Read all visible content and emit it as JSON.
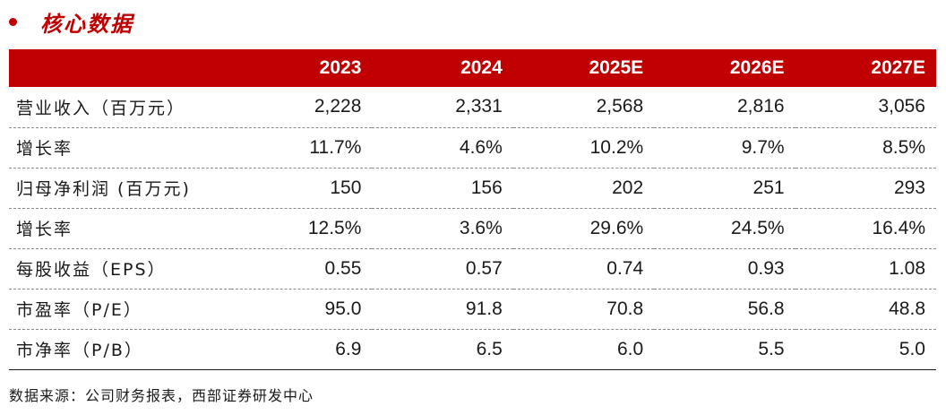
{
  "section": {
    "title": "核心数据",
    "bullet_color": "#c00000"
  },
  "table": {
    "header_color": "#c00000",
    "columns": [
      "",
      "2023",
      "2024",
      "2025E",
      "2026E",
      "2027E"
    ],
    "rows": [
      {
        "label": "营业收入（百万元）",
        "values": [
          "2,228",
          "2,331",
          "2,568",
          "2,816",
          "3,056"
        ]
      },
      {
        "label": "增长率",
        "values": [
          "11.7%",
          "4.6%",
          "10.2%",
          "9.7%",
          "8.5%"
        ]
      },
      {
        "label": "归母净利润 (百万元)",
        "values": [
          "150",
          "156",
          "202",
          "251",
          "293"
        ]
      },
      {
        "label": "增长率",
        "values": [
          "12.5%",
          "3.6%",
          "29.6%",
          "24.5%",
          "16.4%"
        ]
      },
      {
        "label": "每股收益（EPS）",
        "values": [
          "0.55",
          "0.57",
          "0.74",
          "0.93",
          "1.08"
        ]
      },
      {
        "label": "市盈率（P/E）",
        "values": [
          "95.0",
          "91.8",
          "70.8",
          "56.8",
          "48.8"
        ]
      },
      {
        "label": "市净率（P/B）",
        "values": [
          "6.9",
          "6.5",
          "6.0",
          "5.5",
          "5.0"
        ]
      }
    ]
  },
  "source": "数据来源：公司财务报表，西部证券研发中心"
}
